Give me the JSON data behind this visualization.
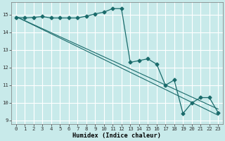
{
  "xlabel": "Humidex (Indice chaleur)",
  "bg_color": "#c8eaea",
  "grid_color": "#ffffff",
  "line_color": "#1a6b6b",
  "xlim": [
    -0.5,
    23.5
  ],
  "ylim": [
    8.8,
    15.7
  ],
  "yticks": [
    9,
    10,
    11,
    12,
    13,
    14,
    15
  ],
  "xticks": [
    0,
    1,
    2,
    3,
    4,
    5,
    6,
    7,
    8,
    9,
    10,
    11,
    12,
    13,
    14,
    15,
    16,
    17,
    18,
    19,
    20,
    21,
    22,
    23
  ],
  "line1_x": [
    0,
    1,
    2,
    3,
    4,
    5,
    6,
    7,
    8,
    9,
    10,
    11,
    12,
    13,
    14,
    15,
    16,
    17,
    18,
    19,
    20,
    21,
    22,
    23
  ],
  "line1_y": [
    14.85,
    14.82,
    14.85,
    14.9,
    14.82,
    14.82,
    14.82,
    14.82,
    14.92,
    15.05,
    15.15,
    15.35,
    15.35,
    12.3,
    12.4,
    12.5,
    12.2,
    11.0,
    11.3,
    9.4,
    10.0,
    10.3,
    10.3,
    9.45
  ],
  "line2_x": [
    0,
    23
  ],
  "line2_y": [
    14.9,
    9.3
  ],
  "line3_x": [
    0,
    23
  ],
  "line3_y": [
    14.9,
    9.65
  ],
  "marker": "D",
  "marker_size": 2.5,
  "tick_fontsize": 5.2,
  "xlabel_fontsize": 6.2
}
